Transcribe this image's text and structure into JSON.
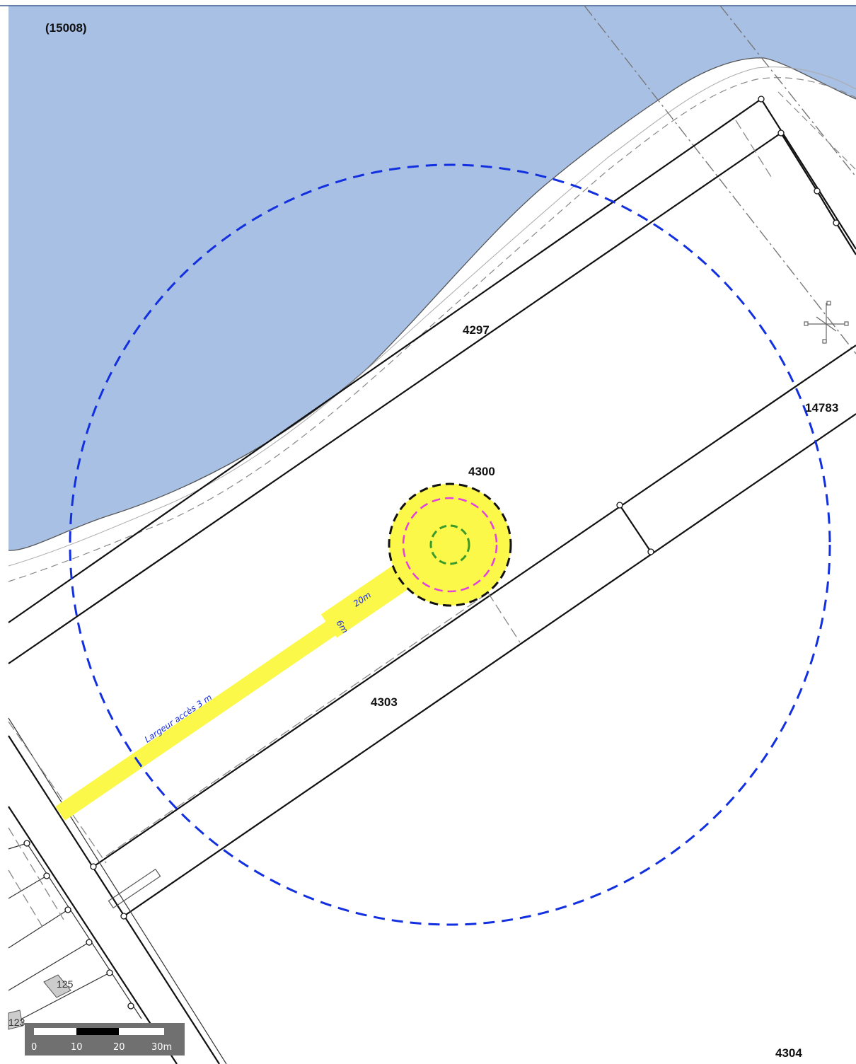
{
  "map": {
    "colors": {
      "water": "#a8c0e4",
      "access_zone": "#fbf84a",
      "radius_circle": "#1230e0",
      "inner_circle_pink": "#e23ee0",
      "inner_circle_green": "#3a9a2a",
      "outer_ring": "#111111",
      "parcel_line": "#111111",
      "scale_bar_background": "#707070"
    },
    "parcels": {
      "p15008": "(15008)",
      "p4297": "4297",
      "p14783": "14783",
      "p4300": "4300",
      "p4303": "4303",
      "p4304": "4304",
      "p125": "125",
      "p123": "123"
    },
    "annotations": {
      "access_width": "Largeur accès 3 m",
      "dim_20m": "20m",
      "dim_6m": "6m"
    },
    "scale_bar": {
      "ticks": [
        "0",
        "10",
        "20",
        "30m"
      ]
    },
    "icons": {
      "north_arrow": "north-arrow-icon"
    }
  }
}
